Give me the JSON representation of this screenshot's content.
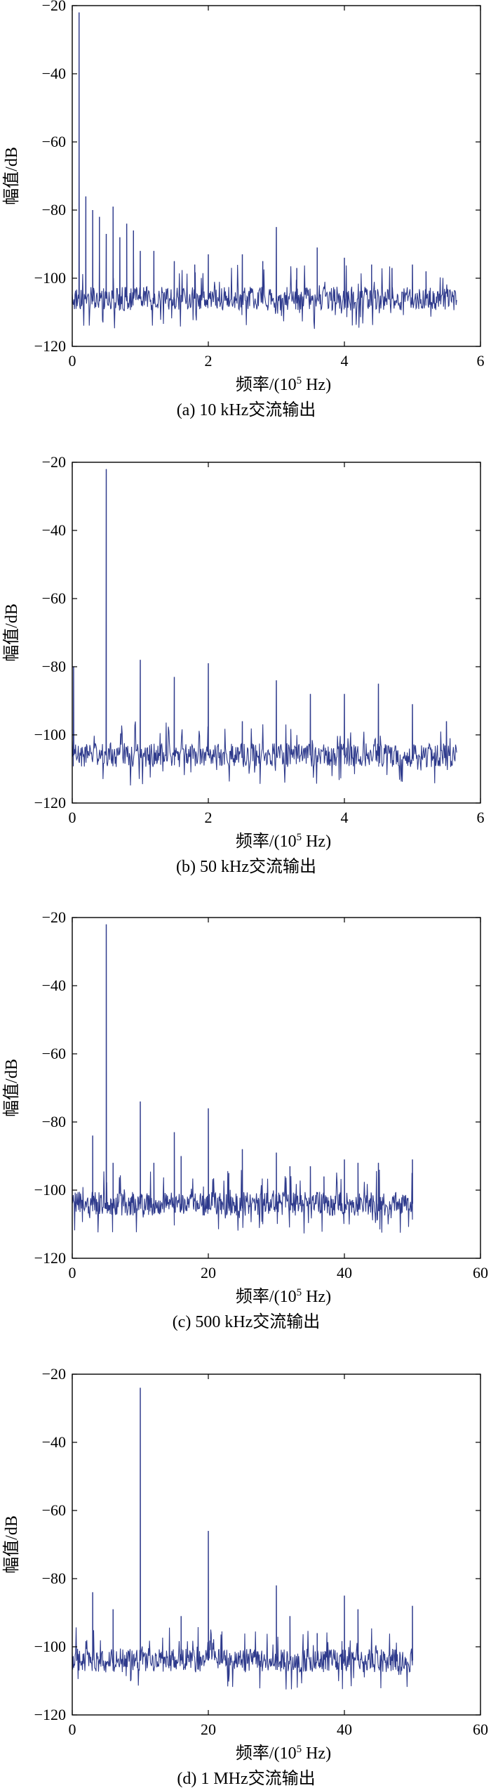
{
  "chart_data": [
    {
      "type": "line",
      "caption": "(a) 10 kHz交流输出",
      "xlabel_prefix": "频率/(10",
      "xlabel_exp": "5",
      "xlabel_suffix": " Hz)",
      "ylabel": "幅值/dB",
      "xlim": [
        0,
        6
      ],
      "ylim": [
        -120,
        -20
      ],
      "xticks": [
        0,
        2,
        4,
        6
      ],
      "xtick_labels": [
        "0",
        "2",
        "4",
        "6"
      ],
      "yticks": [
        -20,
        -40,
        -60,
        -80,
        -100,
        -120
      ],
      "ytick_labels": [
        "−20",
        "−40",
        "−60",
        "−80",
        "−100",
        "−120"
      ],
      "series_color": "#2e3a8c",
      "noise_range": [
        0,
        5.65
      ],
      "noise_floor": -106,
      "peaks": [
        [
          0.1,
          -22
        ],
        [
          0.2,
          -76
        ],
        [
          0.3,
          -80
        ],
        [
          0.4,
          -82
        ],
        [
          0.5,
          -87
        ],
        [
          0.6,
          -79
        ],
        [
          0.7,
          -88
        ],
        [
          0.8,
          -84
        ],
        [
          0.9,
          -86
        ],
        [
          1.0,
          -92
        ],
        [
          1.2,
          -92
        ],
        [
          1.5,
          -95
        ],
        [
          1.8,
          -96
        ],
        [
          2.0,
          -93
        ],
        [
          2.5,
          -93
        ],
        [
          2.8,
          -95
        ],
        [
          3.0,
          -85
        ],
        [
          3.3,
          -97
        ],
        [
          3.6,
          -91
        ],
        [
          4.0,
          -94
        ],
        [
          4.4,
          -96
        ],
        [
          4.7,
          -97
        ],
        [
          5.0,
          -96
        ],
        [
          5.2,
          -98
        ]
      ]
    },
    {
      "type": "line",
      "caption": "(b) 50 kHz交流输出",
      "xlabel_prefix": "频率/(10",
      "xlabel_exp": "5",
      "xlabel_suffix": " Hz)",
      "ylabel": "幅值/dB",
      "xlim": [
        0,
        6
      ],
      "ylim": [
        -120,
        -20
      ],
      "xticks": [
        0,
        2,
        4,
        6
      ],
      "xtick_labels": [
        "0",
        "2",
        "4",
        "6"
      ],
      "yticks": [
        -20,
        -40,
        -60,
        -80,
        -100,
        -120
      ],
      "ytick_labels": [
        "−20",
        "−40",
        "−60",
        "−80",
        "−100",
        "−120"
      ],
      "series_color": "#2e3a8c",
      "noise_range": [
        0,
        5.65
      ],
      "noise_floor": -106,
      "peaks": [
        [
          0.02,
          -80
        ],
        [
          0.5,
          -22
        ],
        [
          1.0,
          -78
        ],
        [
          1.5,
          -83
        ],
        [
          2.0,
          -79
        ],
        [
          2.5,
          -96
        ],
        [
          3.0,
          -84
        ],
        [
          3.5,
          -88
        ],
        [
          4.0,
          -88
        ],
        [
          4.5,
          -85
        ],
        [
          5.0,
          -91
        ],
        [
          5.5,
          -96
        ]
      ]
    },
    {
      "type": "line",
      "caption": "(c) 500 kHz交流输出",
      "xlabel_prefix": "频率/(10",
      "xlabel_exp": "5",
      "xlabel_suffix": " Hz)",
      "ylabel": "幅值/dB",
      "xlim": [
        0,
        60
      ],
      "ylim": [
        -120,
        -20
      ],
      "xticks": [
        0,
        20,
        40,
        60
      ],
      "xtick_labels": [
        "0",
        "20",
        "40",
        "60"
      ],
      "yticks": [
        -20,
        -40,
        -60,
        -80,
        -100,
        -120
      ],
      "ytick_labels": [
        "−20",
        "−40",
        "−60",
        "−80",
        "−100",
        "−120"
      ],
      "series_color": "#2e3a8c",
      "noise_range": [
        0,
        50
      ],
      "noise_floor": -104,
      "peaks": [
        [
          3,
          -84
        ],
        [
          5,
          -22
        ],
        [
          6,
          -92
        ],
        [
          10,
          -74
        ],
        [
          12,
          -92
        ],
        [
          15,
          -83
        ],
        [
          16,
          -90
        ],
        [
          20,
          -76
        ],
        [
          23,
          -95
        ],
        [
          25,
          -88
        ],
        [
          30,
          -89
        ],
        [
          32,
          -93
        ],
        [
          35,
          -93
        ],
        [
          37,
          -96
        ],
        [
          40,
          -91
        ],
        [
          42,
          -92
        ],
        [
          45,
          -92
        ],
        [
          50,
          -91
        ]
      ]
    },
    {
      "type": "line",
      "caption": "(d) 1 MHz交流输出",
      "xlabel_prefix": "频率/(10",
      "xlabel_exp": "5",
      "xlabel_suffix": " Hz)",
      "ylabel": "幅值/dB",
      "xlim": [
        0,
        60
      ],
      "ylim": [
        -120,
        -20
      ],
      "xticks": [
        0,
        20,
        40,
        60
      ],
      "xtick_labels": [
        "0",
        "20",
        "40",
        "60"
      ],
      "yticks": [
        -20,
        -40,
        -60,
        -80,
        -100,
        -120
      ],
      "ytick_labels": [
        "−20",
        "−40",
        "−60",
        "−80",
        "−100",
        "−120"
      ],
      "series_color": "#2e3a8c",
      "noise_range": [
        0,
        50
      ],
      "noise_floor": -104,
      "peaks": [
        [
          3,
          -84
        ],
        [
          6,
          -89
        ],
        [
          10,
          -24
        ],
        [
          16,
          -91
        ],
        [
          20,
          -66
        ],
        [
          30,
          -82
        ],
        [
          32,
          -91
        ],
        [
          36,
          -96
        ],
        [
          40,
          -85
        ],
        [
          42,
          -89
        ],
        [
          50,
          -88
        ]
      ]
    }
  ]
}
